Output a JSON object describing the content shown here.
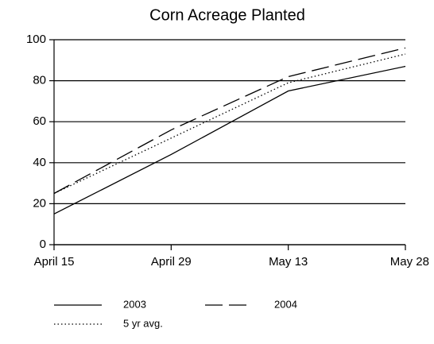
{
  "chart_data": {
    "type": "line",
    "title": "Corn Acreage Planted",
    "categories": [
      "April 15",
      "April 29",
      "May 13",
      "May 28"
    ],
    "series": [
      {
        "name": "2003",
        "color": "#000000",
        "style": "solid",
        "values": [
          15,
          44,
          75,
          87
        ]
      },
      {
        "name": "2004",
        "color": "#000000",
        "style": "dashed",
        "values": [
          25,
          56,
          82,
          96
        ]
      },
      {
        "name": "5 yr avg.",
        "color": "#000000",
        "style": "dotted",
        "values": [
          25,
          52,
          79,
          93
        ]
      }
    ],
    "ylim": [
      0,
      100
    ],
    "yticks": [
      0,
      20,
      40,
      60,
      80,
      100
    ],
    "grid": true,
    "legend": "bottom"
  }
}
